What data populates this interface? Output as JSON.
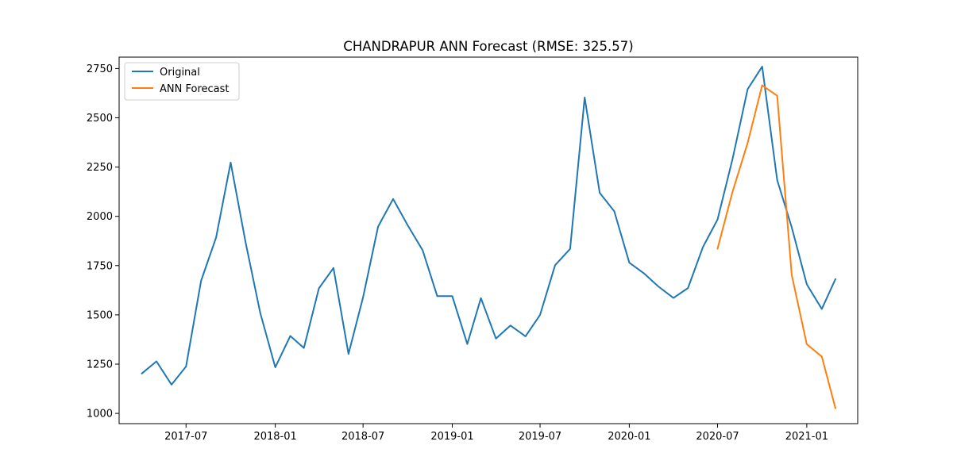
{
  "chart_data": {
    "type": "line",
    "title": "CHANDRAPUR ANN Forecast (RMSE: 325.57)",
    "xlabel": "",
    "ylabel": "",
    "x_ticks": [
      "2017-07",
      "2018-01",
      "2018-07",
      "2019-01",
      "2019-07",
      "2020-01",
      "2020-07",
      "2021-01"
    ],
    "y_ticks": [
      1000,
      1250,
      1500,
      1750,
      2000,
      2250,
      2500,
      2750
    ],
    "xlim": [
      "2017-02-13",
      "2021-04-16"
    ],
    "ylim": [
      948,
      2808
    ],
    "grid": false,
    "legend_position": "upper left",
    "series": [
      {
        "name": "Original",
        "color": "#1f77b4",
        "x": [
          "2017-04-01",
          "2017-05-01",
          "2017-06-01",
          "2017-07-01",
          "2017-08-01",
          "2017-09-01",
          "2017-10-01",
          "2017-11-01",
          "2017-12-01",
          "2018-01-01",
          "2018-02-01",
          "2018-03-01",
          "2018-04-01",
          "2018-05-01",
          "2018-06-01",
          "2018-07-01",
          "2018-08-01",
          "2018-09-01",
          "2018-10-01",
          "2018-11-01",
          "2018-12-01",
          "2019-01-01",
          "2019-02-01",
          "2019-03-01",
          "2019-04-01",
          "2019-05-01",
          "2019-06-01",
          "2019-07-01",
          "2019-08-01",
          "2019-09-01",
          "2019-10-01",
          "2019-11-01",
          "2019-12-01",
          "2020-01-01",
          "2020-02-01",
          "2020-03-01",
          "2020-04-01",
          "2020-05-01",
          "2020-06-01",
          "2020-07-01",
          "2020-08-01",
          "2020-09-01",
          "2020-10-01",
          "2020-11-01",
          "2020-12-01",
          "2021-01-01",
          "2021-02-01",
          "2021-03-01"
        ],
        "values": [
          1203,
          1264,
          1146,
          1238,
          1673,
          1893,
          2273,
          1865,
          1510,
          1234,
          1393,
          1332,
          1635,
          1738,
          1302,
          1589,
          1948,
          2088,
          1955,
          1827,
          1595,
          1595,
          1352,
          1585,
          1380,
          1446,
          1391,
          1500,
          1752,
          1835,
          2603,
          2119,
          2026,
          1765,
          1709,
          1644,
          1586,
          1636,
          1845,
          1984,
          2292,
          2645,
          2760,
          2184,
          1944,
          1655,
          1530,
          1681
        ]
      },
      {
        "name": "ANN Forecast",
        "color": "#ff7f0e",
        "x": [
          "2020-07-01",
          "2020-08-01",
          "2020-09-01",
          "2020-10-01",
          "2020-11-01",
          "2020-12-01",
          "2021-01-01",
          "2021-02-01",
          "2021-03-01"
        ],
        "values": [
          1836,
          2126,
          2372,
          2665,
          2612,
          1702,
          1351,
          1288,
          1027
        ]
      }
    ]
  }
}
